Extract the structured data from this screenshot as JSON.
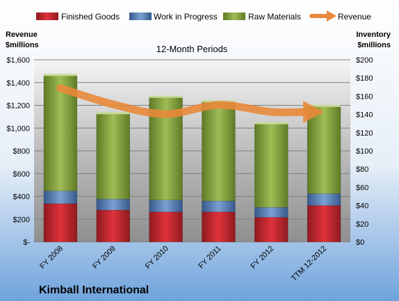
{
  "colors": {
    "finished": "#c0202a",
    "wip": "#4f81bd",
    "raw": "#8aa83c",
    "revenue": "#e8883a"
  },
  "chart_data": {
    "type": "bar",
    "subtype": "stacked-bar-with-line",
    "title": "12-Month Periods",
    "company": "Kimball International",
    "categories": [
      "FY 2008",
      "FY 2009",
      "FY 2010",
      "FY 2011",
      "FY 2012",
      "TTM 12-2012"
    ],
    "left_axis": {
      "title_line1": "Revenue",
      "title_line2": "$millions",
      "min": 0,
      "max": 1600,
      "step": 200,
      "tick_labels": [
        "$-",
        "$200",
        "$400",
        "$600",
        "$800",
        "$1,000",
        "$1,200",
        "$1,400",
        "$1,600"
      ]
    },
    "right_axis": {
      "title_line1": "Inventory",
      "title_line2": "$millions",
      "min": 0,
      "max": 200,
      "step": 20,
      "tick_labels": [
        "$0",
        "$20",
        "$40",
        "$60",
        "$80",
        "$100",
        "$120",
        "$140",
        "$160",
        "$180",
        "$200"
      ]
    },
    "series": [
      {
        "name": "Finished Goods",
        "axis": "right",
        "kind": "bar",
        "values": [
          42,
          35,
          33,
          33,
          27,
          40
        ]
      },
      {
        "name": "Work in Progress",
        "axis": "right",
        "kind": "bar",
        "values": [
          14,
          12,
          13,
          12,
          11,
          13
        ]
      },
      {
        "name": "Raw Materials",
        "axis": "right",
        "kind": "bar",
        "values": [
          127,
          94,
          113,
          109,
          92,
          96
        ]
      },
      {
        "name": "Revenue",
        "axis": "left",
        "kind": "line",
        "values": [
          1352,
          1208,
          1123,
          1203,
          1142,
          1142
        ]
      }
    ],
    "grid": true,
    "legend": "top"
  }
}
